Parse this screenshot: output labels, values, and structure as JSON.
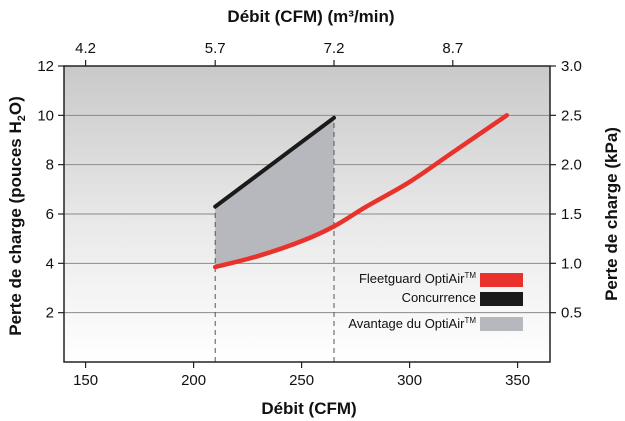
{
  "chart_data": {
    "type": "line",
    "xlabel": "Débit (CFM)",
    "x2label": "Débit (CFM) (m³/min)",
    "ylabel": "Perte de charge (pouces H2O)",
    "y2label": "Perte de charge (kPa)",
    "xlim": [
      140,
      365
    ],
    "ylim": [
      0,
      12
    ],
    "x_ticks": [
      150,
      200,
      250,
      300,
      350
    ],
    "y_ticks": [
      2,
      4,
      6,
      8,
      10,
      12
    ],
    "x2_ticks": [
      {
        "label": "4.2",
        "x": 150
      },
      {
        "label": "5.7",
        "x": 210
      },
      {
        "label": "7.2",
        "x": 265
      },
      {
        "label": "8.7",
        "x": 320
      }
    ],
    "y2_ticks": [
      {
        "label": "0.5",
        "y": 2
      },
      {
        "label": "1.0",
        "y": 4
      },
      {
        "label": "1.5",
        "y": 6
      },
      {
        "label": "2.0",
        "y": 8
      },
      {
        "label": "2.5",
        "y": 10
      },
      {
        "label": "3.0",
        "y": 12
      }
    ],
    "series": [
      {
        "name": "Fleetguard OptiAir™",
        "color": "#e8322b",
        "x": [
          210,
          230,
          250,
          265,
          280,
          300,
          320,
          345
        ],
        "y": [
          3.85,
          4.3,
          4.9,
          5.5,
          6.3,
          7.3,
          8.5,
          10.0
        ]
      },
      {
        "name": "Concurrence",
        "color": "#1a1a1a",
        "x": [
          210,
          265
        ],
        "y": [
          6.3,
          9.9
        ]
      }
    ],
    "shaded_region": {
      "name": "Avantage du OptiAir™",
      "color": "#b7b8bd",
      "x_range": [
        210,
        265
      ]
    },
    "reference_lines_x": [
      210,
      265
    ],
    "grid": true,
    "legend_position": "bottom-right"
  },
  "legend": {
    "optiair_main": "Fleetguard OptiAir",
    "optiair_tm": "TM",
    "concurrence": "Concurrence",
    "avantage_main": "Avantage du OptiAir",
    "avantage_tm": "TM"
  },
  "titles": {
    "top_axis": "Débit (CFM) (m³/min)",
    "bottom_axis": "Débit (CFM)",
    "left_axis_main": "Perte de charge (pouces H",
    "left_axis_sub": "2",
    "left_axis_end": "O)",
    "right_axis": "Perte de charge (kPa)"
  },
  "colors": {
    "optiair": "#e8322b",
    "concurrence": "#1a1a1a",
    "advantage": "#b7b8bd",
    "plot_bg_top": "#c9c9c9",
    "plot_bg_bottom": "#ffffff"
  }
}
